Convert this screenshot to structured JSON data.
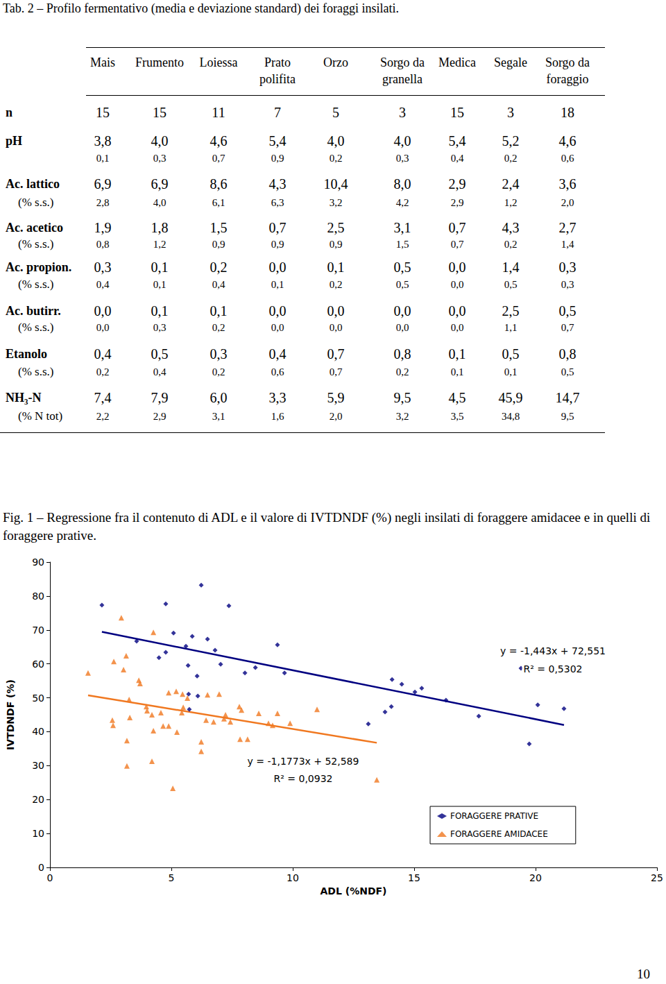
{
  "table": {
    "title": "Tab. 2 – Profilo fermentativo (media e deviazione standard) dei foraggi insilati.",
    "columns": [
      [
        "Mais"
      ],
      [
        "Frumento"
      ],
      [
        "Loiessa"
      ],
      [
        "Prato",
        "polifita"
      ],
      [
        "Orzo"
      ],
      [
        "Sorgo da",
        "granella"
      ],
      [
        "Medica"
      ],
      [
        "Segale"
      ],
      [
        "Sorgo da",
        "foraggio"
      ]
    ],
    "rows": [
      {
        "label": "n",
        "values": [
          "15",
          "15",
          "11",
          "7",
          "5",
          "3",
          "15",
          "3",
          "18"
        ]
      },
      {
        "label": "pH",
        "values": [
          "3,8",
          "4,0",
          "4,6",
          "5,4",
          "4,0",
          "4,0",
          "5,4",
          "5,2",
          "4,6"
        ],
        "sd": [
          "0,1",
          "0,3",
          "0,7",
          "0,9",
          "0,2",
          "0,3",
          "0,4",
          "0,2",
          "0,6"
        ]
      },
      {
        "label": "Ac. lattico",
        "unit": "(% s.s.)",
        "values": [
          "6,9",
          "6,9",
          "8,6",
          "4,3",
          "10,4",
          "8,0",
          "2,9",
          "2,4",
          "3,6"
        ],
        "sd": [
          "2,8",
          "4,0",
          "6,1",
          "6,3",
          "3,2",
          "4,2",
          "2,9",
          "1,2",
          "2,0"
        ]
      },
      {
        "label": "Ac. acetico",
        "unit": "(% s.s.)",
        "values": [
          "1,9",
          "1,8",
          "1,5",
          "0,7",
          "2,5",
          "3,1",
          "0,7",
          "4,3",
          "2,7"
        ],
        "sd": [
          "0,8",
          "1,2",
          "0,9",
          "0,9",
          "0,9",
          "1,5",
          "0,7",
          "0,2",
          "1,4"
        ]
      },
      {
        "label": "Ac. propion.",
        "unit": "(% s.s.)",
        "values": [
          "0,3",
          "0,1",
          "0,2",
          "0,0",
          "0,1",
          "0,5",
          "0,0",
          "1,4",
          "0,3"
        ],
        "sd": [
          "0,4",
          "0,1",
          "0,4",
          "0,1",
          "0,2",
          "0,5",
          "0,0",
          "0,5",
          "0,3"
        ]
      },
      {
        "label": "Ac. butirr.",
        "unit": "(% s.s.)",
        "values": [
          "0,0",
          "0,1",
          "0,1",
          "0,0",
          "0,0",
          "0,0",
          "0,0",
          "2,5",
          "0,5"
        ],
        "sd": [
          "0,0",
          "0,3",
          "0,2",
          "0,0",
          "0,0",
          "0,0",
          "0,0",
          "1,1",
          "0,7"
        ]
      },
      {
        "label": "Etanolo",
        "unit": "(% s.s.)",
        "values": [
          "0,4",
          "0,5",
          "0,3",
          "0,4",
          "0,7",
          "0,8",
          "0,1",
          "0,5",
          "0,8"
        ],
        "sd": [
          "0,2",
          "0,4",
          "0,2",
          "0,6",
          "0,7",
          "0,2",
          "0,1",
          "0,1",
          "0,5"
        ]
      },
      {
        "label": "NH₃-N",
        "unit": "(% N tot)",
        "values": [
          "7,4",
          "7,9",
          "6,0",
          "3,3",
          "5,9",
          "9,5",
          "4,5",
          "45,9",
          "14,7"
        ],
        "sd": [
          "2,2",
          "2,9",
          "3,1",
          "1,6",
          "2,0",
          "3,2",
          "3,5",
          "34,8",
          "9,5"
        ]
      }
    ]
  },
  "figure": {
    "caption": "Fig. 1 – Regressione fra il contenuto di ADL e il valore di IVTDNDF (%) negli insilati di foraggere amidacee e in quelli di foraggere prative."
  },
  "chart_data": {
    "type": "scatter",
    "x_label": "ADL (%NDF)",
    "y_label": "IVTDNDF (%)",
    "xlim": [
      0,
      25
    ],
    "xticks": [
      0,
      5,
      10,
      15,
      20,
      25
    ],
    "ylim": [
      0,
      90
    ],
    "yticks": [
      0,
      10,
      20,
      30,
      40,
      50,
      60,
      70,
      80,
      90
    ],
    "grid": false,
    "legend": "lower right",
    "series": [
      {
        "name": "FORAGGERE PRATIVE",
        "color": "#000080",
        "marker": "diamond",
        "x": [
          2.14,
          4.77,
          6.23,
          7.37,
          3.57,
          5.09,
          5.6,
          5.86,
          6.49,
          6.8,
          4.77,
          4.49,
          5.69,
          6.06,
          7.03,
          8.03,
          8.46,
          9.37,
          9.66,
          5.71,
          6.09,
          5.74,
          13.11,
          13.8,
          14.06,
          14.09,
          14.49,
          15.03,
          15.31,
          16.31,
          17.66,
          19.4,
          19.74,
          20.09,
          21.17
        ],
        "values": [
          77.3,
          77.7,
          83.2,
          77.1,
          66.7,
          69.1,
          65.2,
          68.1,
          67.3,
          64.0,
          63.4,
          61.8,
          59.5,
          56.4,
          59.9,
          57.3,
          58.9,
          65.6,
          57.3,
          51.1,
          50.5,
          46.6,
          42.3,
          45.8,
          47.4,
          55.4,
          54.0,
          51.7,
          52.8,
          49.3,
          44.6,
          58.7,
          36.4,
          47.9,
          46.8
        ],
        "trendline": {
          "x": [
            2.14,
            21.17
          ],
          "values": [
            69.46,
            42.0
          ],
          "equation": "y = -1,443x + 72,551",
          "r2": "R² = 0,5302"
        }
      },
      {
        "name": "FORAGGERE AMIDACEE",
        "color": "#F07820",
        "marker": "triangle",
        "x": [
          1.57,
          2.94,
          2.63,
          3.14,
          3.03,
          2.57,
          2.6,
          3.17,
          3.17,
          4.26,
          3.26,
          3.66,
          3.71,
          3.29,
          3.97,
          4.0,
          4.2,
          4.26,
          4.57,
          4.66,
          4.89,
          4.89,
          5.2,
          5.23,
          5.46,
          5.43,
          5.49,
          4.2,
          5.06,
          5.66,
          6.43,
          6.49,
          6.74,
          6.97,
          6.23,
          6.23,
          7.23,
          7.17,
          7.43,
          7.8,
          7.89,
          7.83,
          8.14,
          8.6,
          9.0,
          9.17,
          9.37,
          9.89,
          11.0,
          13.46
        ],
        "values": [
          57.3,
          73.6,
          60.7,
          62.4,
          58.3,
          43.4,
          41.9,
          37.4,
          29.9,
          69.3,
          49.5,
          55.2,
          54.2,
          44.2,
          47.4,
          46.2,
          45.0,
          40.3,
          45.6,
          41.7,
          41.7,
          51.5,
          51.9,
          39.9,
          51.1,
          45.6,
          47.2,
          31.3,
          23.3,
          49.9,
          43.4,
          50.9,
          42.9,
          51.1,
          37.0,
          34.2,
          45.0,
          43.8,
          42.9,
          47.4,
          46.4,
          37.8,
          37.8,
          45.4,
          42.5,
          41.9,
          45.4,
          42.5,
          46.6,
          25.8
        ],
        "trendline": {
          "x": [
            1.57,
            13.46
          ],
          "values": [
            50.74,
            36.74
          ],
          "equation": "y = -1,1773x + 52,589",
          "r2": "R² = 0,0932"
        }
      }
    ]
  },
  "page_number": "10"
}
